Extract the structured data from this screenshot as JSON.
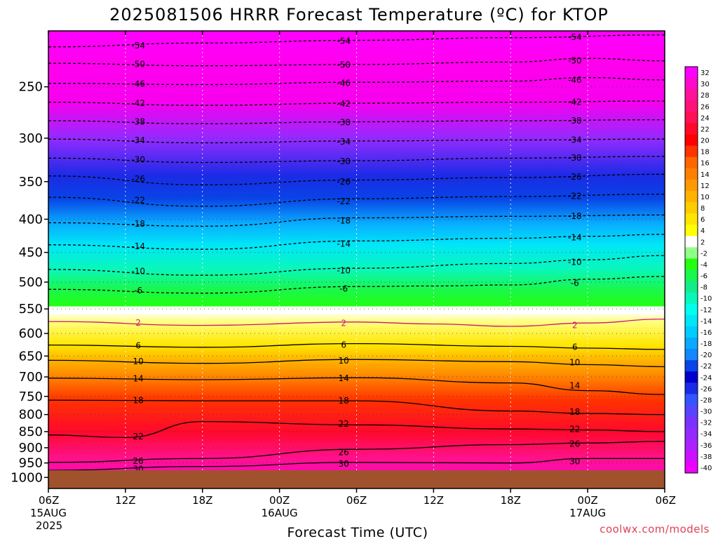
{
  "chart_data": {
    "type": "heatmap",
    "title": "2025081506 HRRR Forecast Temperature (ºC) for KTOP",
    "xlabel": "Forecast Time (UTC)",
    "ylabel": "",
    "x_ticks": [
      {
        "line1": "06Z",
        "line2": "15AUG",
        "line3": "2025"
      },
      {
        "line1": "12Z",
        "line2": "",
        "line3": ""
      },
      {
        "line1": "18Z",
        "line2": "",
        "line3": ""
      },
      {
        "line1": "00Z",
        "line2": "16AUG",
        "line3": ""
      },
      {
        "line1": "06Z",
        "line2": "",
        "line3": ""
      },
      {
        "line1": "12Z",
        "line2": "",
        "line3": ""
      },
      {
        "line1": "18Z",
        "line2": "",
        "line3": ""
      },
      {
        "line1": "00Z",
        "line2": "17AUG",
        "line3": ""
      },
      {
        "line1": "06Z",
        "line2": "",
        "line3": ""
      }
    ],
    "x_hours": [
      0,
      6,
      12,
      18,
      24,
      30,
      36,
      42,
      48
    ],
    "xlim_hours": [
      0,
      48
    ],
    "y_ticks": [
      "250",
      "300",
      "350",
      "400",
      "450",
      "500",
      "550",
      "600",
      "650",
      "700",
      "750",
      "800",
      "850",
      "900",
      "950",
      "1000"
    ],
    "y_values_hpa": [
      250,
      300,
      350,
      400,
      450,
      500,
      550,
      600,
      650,
      700,
      750,
      800,
      850,
      900,
      950,
      1000
    ],
    "ylim_hpa": [
      1040,
      205
    ],
    "y_scale": "log",
    "ground_top_hpa": 975,
    "colorbar_ticks": [
      "32",
      "30",
      "28",
      "26",
      "24",
      "22",
      "20",
      "18",
      "16",
      "14",
      "12",
      "10",
      "8",
      "6",
      "4",
      "2",
      "-2",
      "-4",
      "-6",
      "-8",
      "-10",
      "-12",
      "-14",
      "-16",
      "-18",
      "-20",
      "-22",
      "-24",
      "-26",
      "-28",
      "-30",
      "-32",
      "-34",
      "-36",
      "-38",
      "-40"
    ],
    "colorbar_values": [
      32,
      30,
      28,
      26,
      24,
      22,
      20,
      18,
      16,
      14,
      12,
      10,
      8,
      6,
      4,
      2,
      -2,
      -4,
      -6,
      -8,
      -10,
      -12,
      -14,
      -16,
      -18,
      -20,
      -22,
      -24,
      -26,
      -28,
      -30,
      -32,
      -34,
      -36,
      -38,
      -40
    ],
    "contour_labels": [
      "-54",
      "-50",
      "-46",
      "-42",
      "-38",
      "-34",
      "-30",
      "-26",
      "-22",
      "-18",
      "-14",
      "-10",
      "-6",
      "2",
      "6",
      "10",
      "14",
      "18",
      "22",
      "26",
      "30"
    ],
    "contours": [
      {
        "t": -54,
        "p": [
          [
            0,
            217
          ],
          [
            12,
            214
          ],
          [
            24,
            212
          ],
          [
            36,
            210
          ],
          [
            48,
            208
          ]
        ]
      },
      {
        "t": -50,
        "p": [
          [
            0,
            230
          ],
          [
            12,
            232
          ],
          [
            24,
            231
          ],
          [
            36,
            229
          ],
          [
            42,
            226
          ],
          [
            48,
            228
          ]
        ]
      },
      {
        "t": -46,
        "p": [
          [
            0,
            247
          ],
          [
            12,
            248
          ],
          [
            24,
            246
          ],
          [
            36,
            245
          ],
          [
            42,
            242
          ],
          [
            48,
            244
          ]
        ]
      },
      {
        "t": -42,
        "p": [
          [
            0,
            264
          ],
          [
            12,
            267
          ],
          [
            24,
            265
          ],
          [
            36,
            264
          ],
          [
            48,
            263
          ]
        ]
      },
      {
        "t": -38,
        "p": [
          [
            0,
            282
          ],
          [
            12,
            285
          ],
          [
            24,
            283
          ],
          [
            36,
            282
          ],
          [
            48,
            281
          ]
        ]
      },
      {
        "t": -34,
        "p": [
          [
            0,
            301
          ],
          [
            12,
            305
          ],
          [
            24,
            303
          ],
          [
            36,
            302
          ],
          [
            48,
            301
          ]
        ]
      },
      {
        "t": -30,
        "p": [
          [
            0,
            322
          ],
          [
            12,
            327
          ],
          [
            24,
            325
          ],
          [
            36,
            322
          ],
          [
            48,
            320
          ]
        ]
      },
      {
        "t": -26,
        "p": [
          [
            0,
            343
          ],
          [
            12,
            354
          ],
          [
            24,
            348
          ],
          [
            36,
            345
          ],
          [
            48,
            341
          ]
        ]
      },
      {
        "t": -22,
        "p": [
          [
            0,
            370
          ],
          [
            12,
            382
          ],
          [
            24,
            372
          ],
          [
            36,
            369
          ],
          [
            48,
            366
          ]
        ]
      },
      {
        "t": -18,
        "p": [
          [
            0,
            405
          ],
          [
            12,
            410
          ],
          [
            24,
            398
          ],
          [
            36,
            396
          ],
          [
            48,
            394
          ]
        ]
      },
      {
        "t": -14,
        "p": [
          [
            0,
            438
          ],
          [
            12,
            445
          ],
          [
            24,
            432
          ],
          [
            36,
            428
          ],
          [
            42,
            425
          ],
          [
            48,
            422
          ]
        ]
      },
      {
        "t": -10,
        "p": [
          [
            0,
            478
          ],
          [
            12,
            488
          ],
          [
            24,
            476
          ],
          [
            36,
            468
          ],
          [
            42,
            462
          ],
          [
            48,
            455
          ]
        ]
      },
      {
        "t": -6,
        "p": [
          [
            0,
            513
          ],
          [
            12,
            520
          ],
          [
            24,
            508
          ],
          [
            30,
            507
          ],
          [
            36,
            505
          ],
          [
            42,
            495
          ],
          [
            48,
            490
          ]
        ]
      },
      {
        "t": 2,
        "p": [
          [
            0,
            575
          ],
          [
            12,
            583
          ],
          [
            24,
            576
          ],
          [
            30,
            580
          ],
          [
            36,
            585
          ],
          [
            42,
            578
          ],
          [
            48,
            570
          ]
        ]
      },
      {
        "t": 6,
        "p": [
          [
            0,
            625
          ],
          [
            12,
            630
          ],
          [
            24,
            622
          ],
          [
            36,
            628
          ],
          [
            42,
            632
          ],
          [
            48,
            635
          ]
        ]
      },
      {
        "t": 10,
        "p": [
          [
            0,
            660
          ],
          [
            12,
            667
          ],
          [
            24,
            658
          ],
          [
            36,
            663
          ],
          [
            42,
            670
          ],
          [
            48,
            675
          ]
        ]
      },
      {
        "t": 14,
        "p": [
          [
            0,
            703
          ],
          [
            12,
            707
          ],
          [
            24,
            702
          ],
          [
            36,
            715
          ],
          [
            42,
            735
          ],
          [
            48,
            745
          ]
        ]
      },
      {
        "t": 18,
        "p": [
          [
            0,
            760
          ],
          [
            12,
            762
          ],
          [
            24,
            762
          ],
          [
            36,
            790
          ],
          [
            42,
            797
          ],
          [
            48,
            800
          ]
        ]
      },
      {
        "t": 22,
        "p": [
          [
            0,
            860
          ],
          [
            6,
            868
          ],
          [
            12,
            820
          ],
          [
            24,
            830
          ],
          [
            36,
            842
          ],
          [
            42,
            845
          ],
          [
            48,
            850
          ]
        ]
      },
      {
        "t": 26,
        "p": [
          [
            0,
            948
          ],
          [
            12,
            935
          ],
          [
            24,
            905
          ],
          [
            36,
            890
          ],
          [
            42,
            885
          ],
          [
            48,
            880
          ]
        ]
      },
      {
        "t": 30,
        "p": [
          [
            0,
            975
          ],
          [
            12,
            962
          ],
          [
            24,
            948
          ],
          [
            36,
            950
          ],
          [
            42,
            935
          ],
          [
            48,
            935
          ]
        ]
      }
    ]
  },
  "credit": "coolwx.com/models",
  "colors": {
    "ground": "#a0522d",
    "credit": "#e0405a"
  }
}
